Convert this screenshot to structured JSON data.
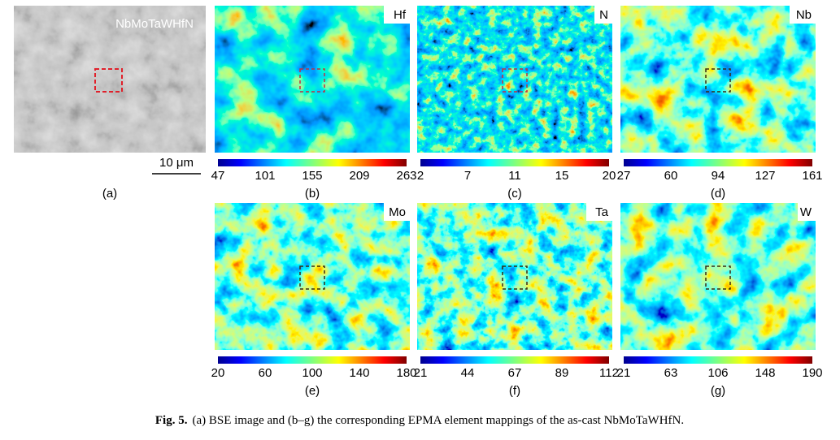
{
  "panel_a": {
    "sample_label": "NbMoTaWHfN",
    "scale_bar": "10 μm",
    "label": "(a)"
  },
  "maps": [
    {
      "element": "Hf",
      "ticks": [
        "47",
        "101",
        "155",
        "209",
        "263"
      ],
      "label": "(b)"
    },
    {
      "element": "N",
      "ticks": [
        "2",
        "7",
        "11",
        "15",
        "20"
      ],
      "label": "(c)"
    },
    {
      "element": "Nb",
      "ticks": [
        "27",
        "60",
        "94",
        "127",
        "161"
      ],
      "label": "(d)"
    },
    {
      "element": "Mo",
      "ticks": [
        "20",
        "60",
        "100",
        "140",
        "180"
      ],
      "label": "(e)"
    },
    {
      "element": "Ta",
      "ticks": [
        "21",
        "44",
        "67",
        "89",
        "112"
      ],
      "label": "(f)"
    },
    {
      "element": "W",
      "ticks": [
        "21",
        "63",
        "106",
        "148",
        "190"
      ],
      "label": "(g)"
    }
  ],
  "caption": {
    "prefix": "Fig. 5.",
    "text": "(a) BSE image and (b–g) the corresponding EPMA element mappings of the as-cast NbMoTaWHfN."
  }
}
